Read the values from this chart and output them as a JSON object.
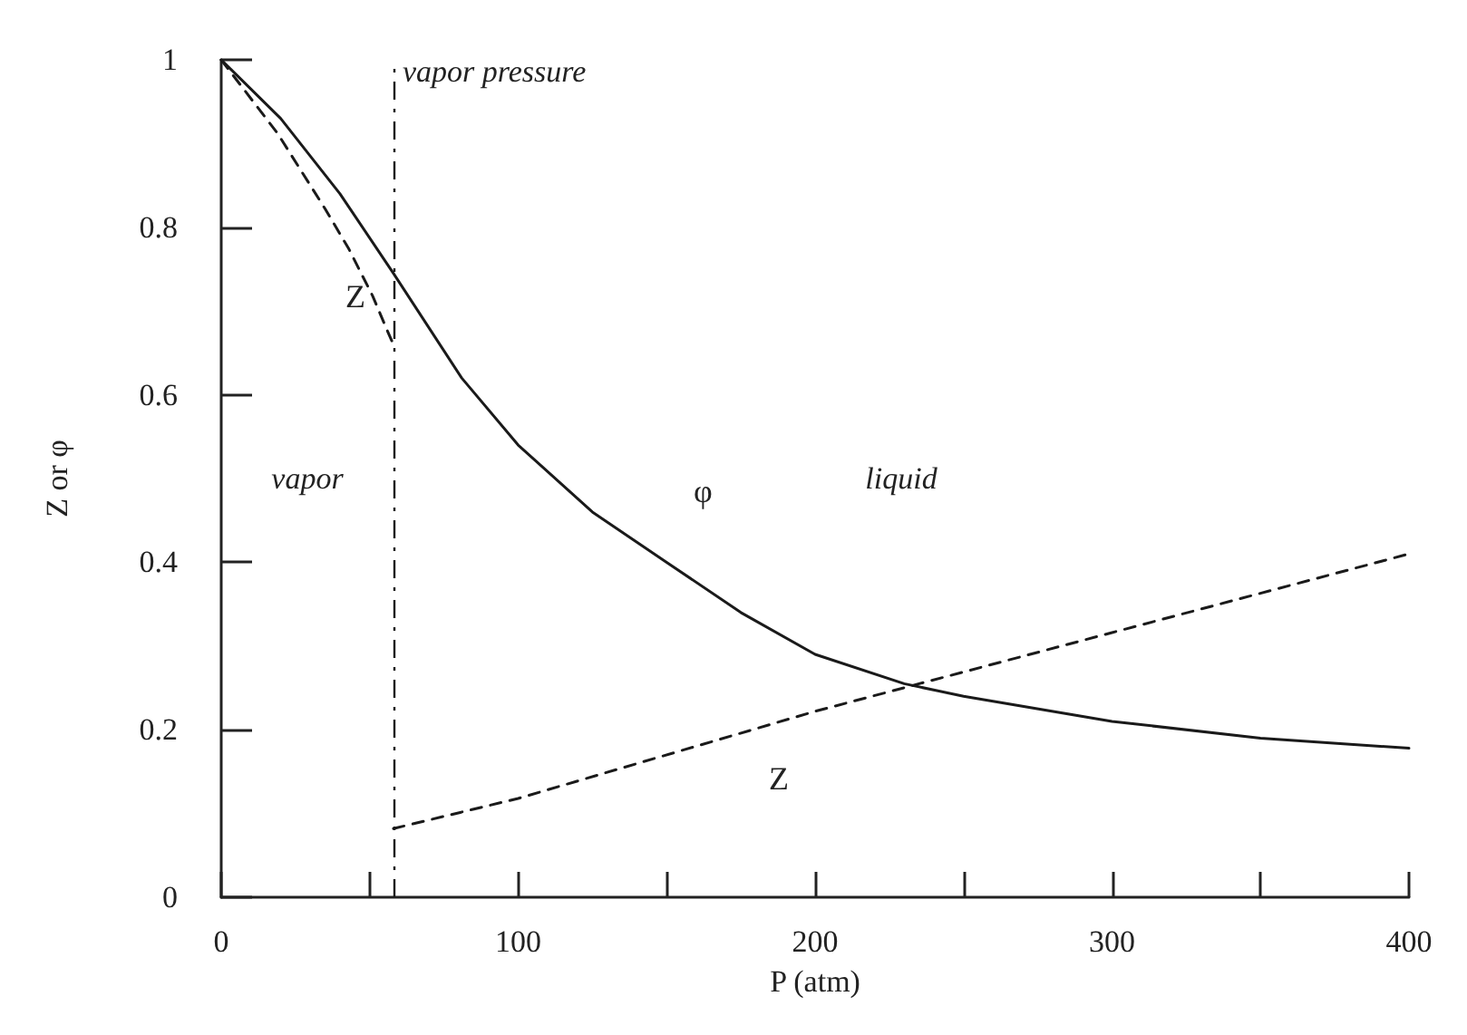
{
  "chart_data": {
    "type": "line",
    "xlabel": "P (atm)",
    "ylabel": "Z or φ",
    "xlim": [
      0,
      400
    ],
    "ylim": [
      0,
      1
    ],
    "xticks": [
      0,
      {
        "value": 50,
        "label": null
      },
      100,
      {
        "value": 150,
        "label": null
      },
      200,
      {
        "value": 250,
        "label": null
      },
      300,
      {
        "value": 350,
        "label": null
      },
      400
    ],
    "yticks": [
      0,
      0.2,
      0.4,
      0.6,
      0.8,
      1
    ],
    "grid": false,
    "marker": "none",
    "series": [
      {
        "name": "φ",
        "color": "#1a1a1a",
        "line_style": "solid",
        "x": [
          0,
          20,
          40,
          58,
          81,
          100,
          125,
          150,
          175,
          200,
          230,
          250,
          300,
          350,
          400
        ],
        "values": [
          1,
          0.93,
          0.84,
          0.745,
          0.62,
          0.54,
          0.46,
          0.4,
          0.34,
          0.29,
          0.255,
          0.24,
          0.21,
          0.19,
          0.178
        ]
      },
      {
        "name": "Z",
        "color": "#1a1a1a",
        "line_style": "dashed",
        "x": [
          0,
          19,
          35,
          43,
          51,
          56,
          58
        ],
        "values": [
          1,
          0.912,
          0.822,
          0.774,
          0.718,
          0.676,
          0.66
        ]
      },
      {
        "name": "Z",
        "color": "#1a1a1a",
        "line_style": "dashed",
        "x": [
          58,
          100,
          200,
          300,
          400
        ],
        "values": [
          0.082,
          0.118,
          0.222,
          0.316,
          0.41
        ]
      }
    ],
    "ref_lines": [
      {
        "axis": "x",
        "value": 58,
        "label": "vapor pressure",
        "line_style": "dashdot",
        "color": "#1a1a1a"
      }
    ],
    "annotations": [
      "vapor",
      "liquid"
    ]
  }
}
